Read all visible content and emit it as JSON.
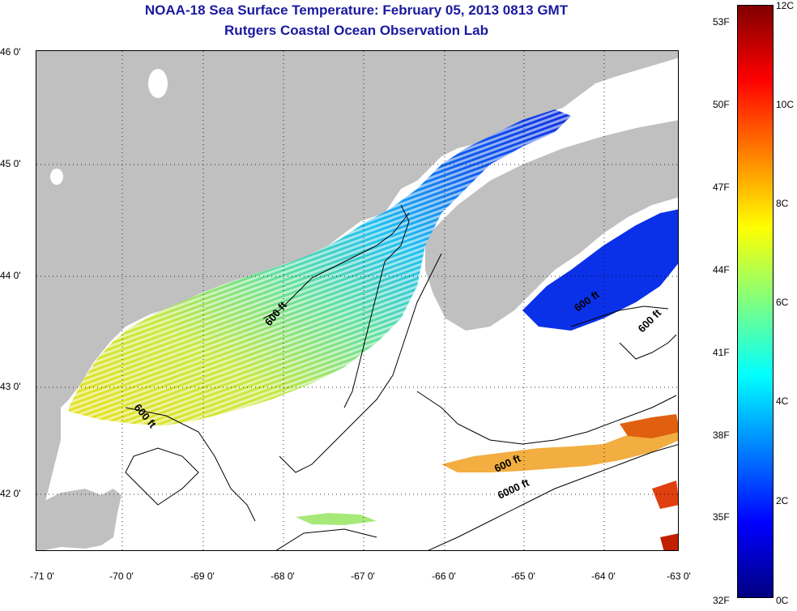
{
  "title": {
    "line1": "NOAA-18 Sea Surface Temperature:  February 05, 2013 0813 GMT",
    "line2": "Rutgers Coastal Ocean Observation Lab"
  },
  "map": {
    "lat_labels": [
      "46 0'",
      "45 0'",
      "44 0'",
      "43 0'",
      "42 0'"
    ],
    "lon_labels": [
      "-71 0'",
      "-70 0'",
      "-69 0'",
      "-68 0'",
      "-67 0'",
      "-66 0'",
      "-65 0'",
      "-64 0'",
      "-63 0'"
    ],
    "land_color": "#c0c0c0",
    "contour_labels": [
      "600 ft",
      "600 ft",
      "600 ft",
      "600 ft",
      "600 ft",
      "6000 ft"
    ]
  },
  "colorbar": {
    "fahrenheit_labels": [
      "53F",
      "50F",
      "47F",
      "44F",
      "41F",
      "38F",
      "35F",
      "32F"
    ],
    "celsius_labels": [
      "12C",
      "10C",
      "8C",
      "6C",
      "4C",
      "2C",
      "0C"
    ],
    "colors": [
      "#800000",
      "#ff0000",
      "#ff8000",
      "#ffff00",
      "#80ff80",
      "#00ffff",
      "#0080ff",
      "#0000ff",
      "#000080"
    ]
  }
}
